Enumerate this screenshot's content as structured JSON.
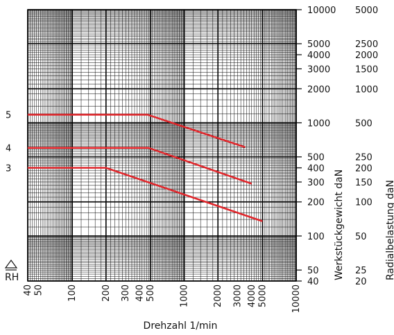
{
  "chart_data": {
    "type": "line",
    "xlabel": "Drehzahl 1/min",
    "xscale": "log",
    "xlim": [
      40,
      10000
    ],
    "xticks": [
      "40",
      "50",
      "100",
      "200",
      "300",
      "400",
      "500",
      "1000",
      "2000",
      "3000",
      "4000",
      "5000",
      "10000"
    ],
    "y_left_label": "Werkstückgewicht daN",
    "y_left_scale": "log",
    "y_left_lim": [
      40,
      10000
    ],
    "y_left_ticks": [
      "10000",
      "5000",
      "4000",
      "3000",
      "2000",
      "1000",
      "500",
      "400",
      "300",
      "200",
      "100",
      "50",
      "40"
    ],
    "y_right_label": "Radialbelastung daN",
    "y_right_ticks": [
      "5000",
      "2500",
      "2000",
      "1500",
      "1000",
      "500",
      "250",
      "200",
      "150",
      "100",
      "50",
      "25",
      "20"
    ],
    "grid": true,
    "marker_symbol": "RH",
    "series": [
      {
        "name": "5",
        "color": "#e0262b",
        "x": [
          40,
          470,
          3500
        ],
        "y": [
          1180,
          1180,
          610
        ]
      },
      {
        "name": "4",
        "color": "#e0262b",
        "x": [
          40,
          480,
          4000
        ],
        "y": [
          600,
          600,
          290
        ]
      },
      {
        "name": "3",
        "color": "#e0262b",
        "x": [
          40,
          200,
          5000
        ],
        "y": [
          400,
          400,
          135
        ]
      }
    ]
  }
}
